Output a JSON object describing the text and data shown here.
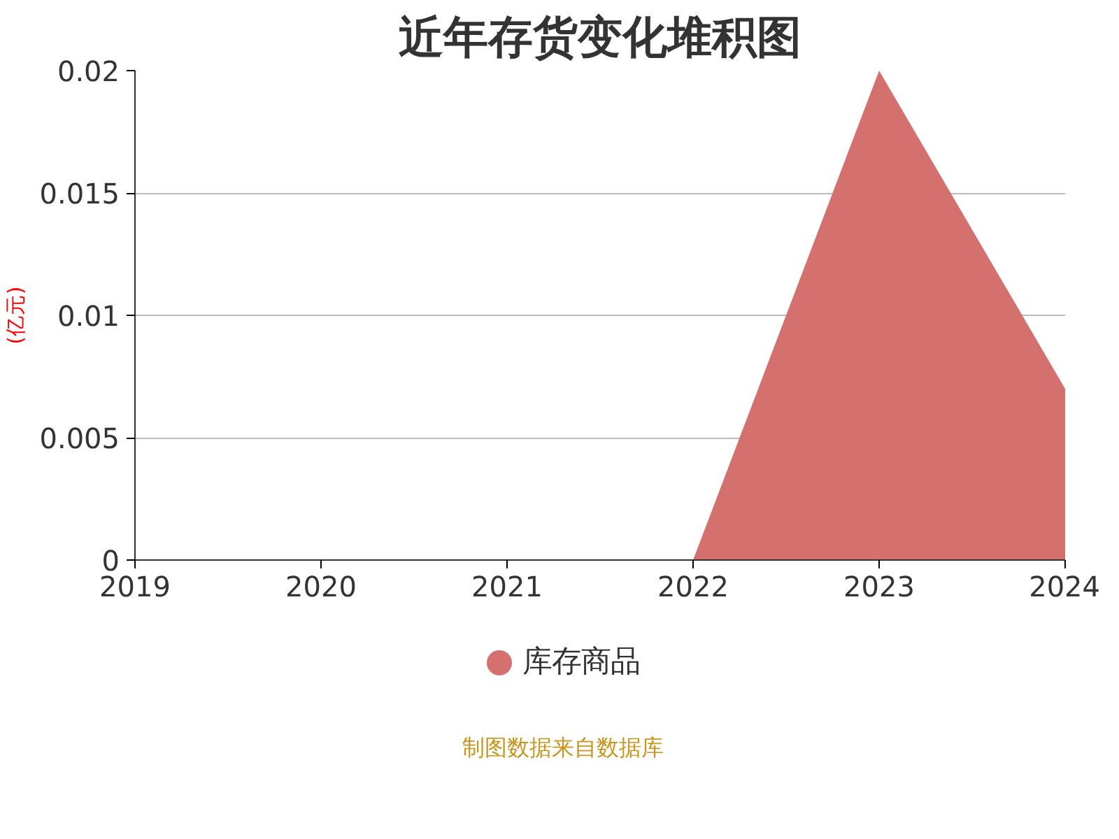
{
  "chart_data": {
    "type": "area",
    "title": "近年存货变化堆积图",
    "ylabel": "(亿元)",
    "x": [
      2019,
      2020,
      2021,
      2022,
      2023,
      2024
    ],
    "series": [
      {
        "name": "库存商品",
        "color": "#d4716e",
        "values": [
          0,
          0,
          0,
          0,
          0.02,
          0.007
        ]
      }
    ],
    "xlim": [
      2019,
      2024
    ],
    "xticks": [
      2019,
      2020,
      2021,
      2022,
      2023,
      2024
    ],
    "ylim": [
      0,
      0.02
    ],
    "yticks": [
      0,
      0.005,
      0.01,
      0.015,
      0.02
    ],
    "grid": "y",
    "legend": "bottom",
    "annotations": [
      "制图数据来自数据库"
    ]
  }
}
